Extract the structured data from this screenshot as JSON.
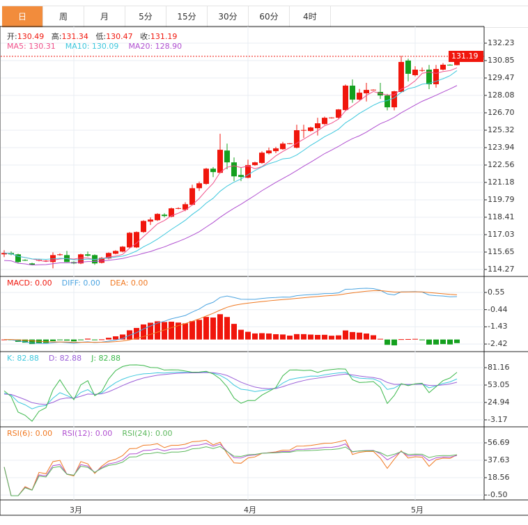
{
  "tabs": [
    "日",
    "周",
    "月",
    "5分",
    "15分",
    "30分",
    "60分",
    "4时"
  ],
  "active_tab": 0,
  "colors": {
    "up": "#f0160c",
    "down": "#14a01e",
    "ma5": "#f0508a",
    "ma10": "#3cc7dd",
    "ma20": "#b04fd0",
    "diff": "#4aa3e0",
    "dea": "#f07820",
    "k": "#3cc7dd",
    "d": "#9a5ed8",
    "j": "#3bb84a",
    "rsi6": "#f07820",
    "rsi12": "#b04fd0",
    "rsi24": "#5cb85c",
    "accent": "#f28c3c"
  },
  "ohlc_info": {
    "open_label": "开:",
    "open": "130.49",
    "high_label": "高:",
    "high": "131.34",
    "low_label": "低:",
    "low": "130.47",
    "close_label": "收:",
    "close": "131.19"
  },
  "ma_info": {
    "ma5": "MA5: 130.31",
    "ma10": "MA10: 130.09",
    "ma20": "MA20: 128.90"
  },
  "macd_info": {
    "macd": "MACD: 0.00",
    "diff": "DIFF: 0.00",
    "dea": "DEA: 0.00"
  },
  "kdj_info": {
    "k": "K: 82.88",
    "d": "D: 82.88",
    "j": "J: 82.88"
  },
  "rsi_info": {
    "rsi6": "RSI(6): 0.00",
    "rsi12": "RSI(12): 0.00",
    "rsi24": "RSI(24): 0.00"
  },
  "current_price": "131.19",
  "chart_data": {
    "type": "candlestick",
    "price_axis": {
      "ticks": [
        "132.23",
        "130.85",
        "129.47",
        "128.08",
        "126.70",
        "125.32",
        "123.94",
        "122.56",
        "121.18",
        "119.79",
        "118.41",
        "117.03",
        "115.65",
        "114.27"
      ],
      "range": [
        114.27,
        132.23
      ]
    },
    "macd_axis": {
      "ticks": [
        "0.55",
        "-0.44",
        "-1.43",
        "-2.42"
      ]
    },
    "kdj_axis": {
      "ticks": [
        "81.16",
        "53.05",
        "24.94",
        "-3.17"
      ]
    },
    "rsi_axis": {
      "ticks": [
        "56.69",
        "37.63",
        "18.56",
        "-0.50"
      ]
    },
    "x_labels": [
      {
        "label": "3月",
        "index": 10
      },
      {
        "label": "4月",
        "index": 35
      },
      {
        "label": "5月",
        "index": 59
      }
    ],
    "candles": [
      [
        115.47,
        115.8,
        115.25,
        115.58
      ],
      [
        115.58,
        115.7,
        115.4,
        115.47
      ],
      [
        115.47,
        115.52,
        114.8,
        114.86
      ],
      [
        115.03,
        115.08,
        114.95,
        114.97
      ],
      [
        114.75,
        114.8,
        114.6,
        114.64
      ],
      [
        114.97,
        115.08,
        114.91,
        115.03
      ],
      [
        114.91,
        115.0,
        114.88,
        114.97
      ],
      [
        114.86,
        115.63,
        114.36,
        115.41
      ],
      [
        115.41,
        115.55,
        115.36,
        115.47
      ],
      [
        115.41,
        115.74,
        114.86,
        114.86
      ],
      [
        114.86,
        114.91,
        114.7,
        114.75
      ],
      [
        114.75,
        115.52,
        114.7,
        115.47
      ],
      [
        115.47,
        115.69,
        115.3,
        115.36
      ],
      [
        115.41,
        115.47,
        114.64,
        114.75
      ],
      [
        114.8,
        115.25,
        114.75,
        115.19
      ],
      [
        115.14,
        115.63,
        115.08,
        115.58
      ],
      [
        115.52,
        115.8,
        115.47,
        115.74
      ],
      [
        115.69,
        116.13,
        115.63,
        116.08
      ],
      [
        116.02,
        117.24,
        115.97,
        117.18
      ],
      [
        116.02,
        117.29,
        115.97,
        117.24
      ],
      [
        117.24,
        118.18,
        117.18,
        118.12
      ],
      [
        118.07,
        118.4,
        117.8,
        118.23
      ],
      [
        118.18,
        118.73,
        118.12,
        118.68
      ],
      [
        118.62,
        118.73,
        118.4,
        118.51
      ],
      [
        118.46,
        119.18,
        118.4,
        119.12
      ],
      [
        119.12,
        119.2,
        119.05,
        119.14
      ],
      [
        119.01,
        119.6,
        118.9,
        119.45
      ],
      [
        119.4,
        121.0,
        119.35,
        120.72
      ],
      [
        120.72,
        121.25,
        120.5,
        121.11
      ],
      [
        121.06,
        122.33,
        121.0,
        122.27
      ],
      [
        122.27,
        122.4,
        121.6,
        122.0
      ],
      [
        121.94,
        125.04,
        121.9,
        123.77
      ],
      [
        123.71,
        124.26,
        122.22,
        122.77
      ],
      [
        122.77,
        123.16,
        121.28,
        121.66
      ],
      [
        121.77,
        122.38,
        121.28,
        121.61
      ],
      [
        121.55,
        122.99,
        121.5,
        122.55
      ],
      [
        122.55,
        122.82,
        122.5,
        122.77
      ],
      [
        122.72,
        123.65,
        122.66,
        123.54
      ],
      [
        123.49,
        123.95,
        123.4,
        123.71
      ],
      [
        123.66,
        124.0,
        123.5,
        123.88
      ],
      [
        123.82,
        124.4,
        123.77,
        124.26
      ],
      [
        124.26,
        124.3,
        124.2,
        124.28
      ],
      [
        123.93,
        125.76,
        123.88,
        125.32
      ],
      [
        125.32,
        125.76,
        124.71,
        125.34
      ],
      [
        125.26,
        125.6,
        125.2,
        125.54
      ],
      [
        125.48,
        126.31,
        124.9,
        125.87
      ],
      [
        125.81,
        126.4,
        125.75,
        126.31
      ],
      [
        126.31,
        126.35,
        126.25,
        126.33
      ],
      [
        126.31,
        127.0,
        126.25,
        126.97
      ],
      [
        126.92,
        128.95,
        126.87,
        128.86
      ],
      [
        128.86,
        129.35,
        127.5,
        127.75
      ],
      [
        127.75,
        128.6,
        127.7,
        128.3
      ],
      [
        128.25,
        129.08,
        127.6,
        128.52
      ],
      [
        128.52,
        128.56,
        128.48,
        128.54
      ],
      [
        128.36,
        129.08,
        127.8,
        128.08
      ],
      [
        128.08,
        128.2,
        126.9,
        127.14
      ],
      [
        127.14,
        128.45,
        126.9,
        128.41
      ],
      [
        128.36,
        131.23,
        128.3,
        130.74
      ],
      [
        130.85,
        131.0,
        129.2,
        129.8
      ],
      [
        129.69,
        130.4,
        129.6,
        130.13
      ],
      [
        130.07,
        130.3,
        129.95,
        130.09
      ],
      [
        130.13,
        130.5,
        128.58,
        128.97
      ],
      [
        128.97,
        130.5,
        128.7,
        130.18
      ],
      [
        130.13,
        130.65,
        130.07,
        130.52
      ],
      [
        130.52,
        130.55,
        130.46,
        130.49
      ],
      [
        130.49,
        131.34,
        130.47,
        131.19
      ]
    ]
  }
}
